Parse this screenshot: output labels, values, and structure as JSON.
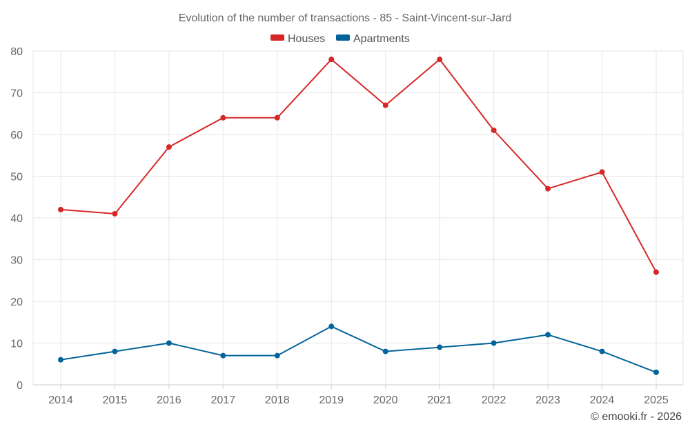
{
  "chart_data": {
    "type": "line",
    "title": "Evolution of the number of transactions - 85 - Saint-Vincent-sur-Jard",
    "categories": [
      "2014",
      "2015",
      "2016",
      "2017",
      "2018",
      "2019",
      "2020",
      "2021",
      "2022",
      "2023",
      "2024",
      "2025"
    ],
    "series": [
      {
        "name": "Houses",
        "color": "#d62728",
        "values": [
          42,
          41,
          57,
          64,
          64,
          78,
          67,
          78,
          61,
          47,
          51,
          27
        ]
      },
      {
        "name": "Apartments",
        "color": "#03649b",
        "values": [
          6,
          8,
          10,
          7,
          7,
          14,
          8,
          9,
          10,
          12,
          8,
          3
        ]
      }
    ],
    "ylim": [
      0,
      80
    ],
    "yticks": [
      "0",
      "10",
      "20",
      "30",
      "40",
      "50",
      "60",
      "70",
      "80"
    ],
    "xlabel": "",
    "ylabel": "",
    "grid": true,
    "legend_position": "top-center"
  },
  "credit": "© emooki.fr - 2026"
}
